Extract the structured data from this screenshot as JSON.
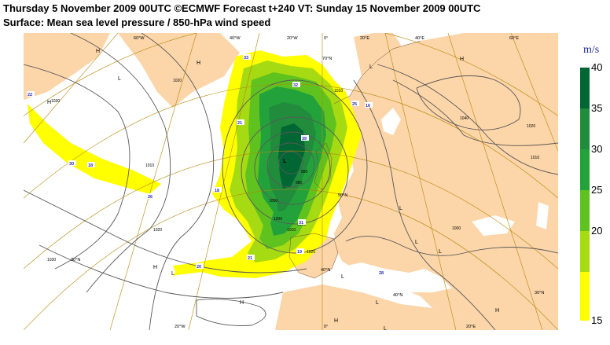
{
  "header": {
    "line1": "Thursday 5 November 2009 00UTC ©ECMWF Forecast t+240 VT: Sunday 15 November 2009 00UTC",
    "line2": "Surface: Mean sea level pressure / 850-hPa wind speed"
  },
  "legend": {
    "unit": "m/s",
    "ticks": [
      "40",
      "35",
      "30",
      "25",
      "20",
      "15"
    ],
    "colors": [
      "#006633",
      "#208c3c",
      "#23a23c",
      "#5fc21e",
      "#a6da12",
      "#ffff00"
    ]
  },
  "map": {
    "colors": {
      "sea": "#ffffff",
      "land": "#fcd5a8",
      "isobar": "#595959",
      "graticule": "#b8860b",
      "coast": "#7a4a2a"
    },
    "lon_labels_top": [
      "60°W",
      "40°W",
      "20°W",
      "0°",
      "20°E",
      "40°E",
      "60°E"
    ],
    "lon_labels_bottom": [
      "20°W",
      "0°",
      "20°E"
    ],
    "lat_labels_left": [
      "60°W",
      "40°W"
    ],
    "lat_labels_right": [
      "60°E",
      "40°E"
    ],
    "inner_lat_labels": [
      "70°N",
      "50°N",
      "40°N",
      "30°N",
      "40°N",
      "30°N"
    ],
    "pressure_labels": [
      "1030",
      "1020",
      "1010",
      "1000",
      "1010",
      "990",
      "980",
      "1000",
      "1010",
      "1020",
      "1030",
      "1040",
      "1020",
      "1010",
      "1000",
      "1000",
      "1020"
    ],
    "highs": [
      "H",
      "H",
      "H",
      "H",
      "H",
      "H",
      "H",
      "H"
    ],
    "lows": [
      "L",
      "L",
      "L",
      "L",
      "L",
      "L",
      "L",
      "L",
      "L",
      "L"
    ],
    "speed_labels": [
      "33",
      "32",
      "25",
      "22",
      "21",
      "39",
      "18",
      "26",
      "30",
      "18",
      "21",
      "31",
      "20",
      "19",
      "16",
      "28"
    ]
  }
}
